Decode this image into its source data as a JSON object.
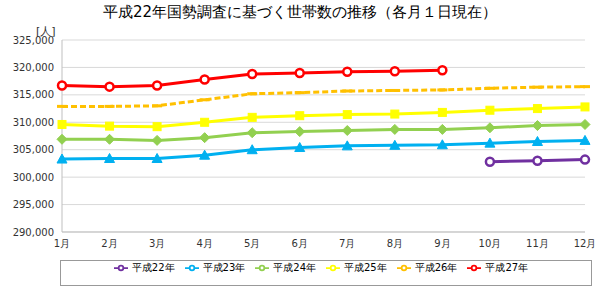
{
  "chart_data": {
    "type": "line",
    "title": "平成22年国勢調査に基づく世帯数の推移（各月１日現在）",
    "y_label": "[人]",
    "categories": [
      "1月",
      "2月",
      "3月",
      "4月",
      "5月",
      "6月",
      "7月",
      "8月",
      "9月",
      "10月",
      "11月",
      "12月"
    ],
    "series": [
      {
        "name": "平成22年",
        "color": "#7030a0",
        "marker": "circle",
        "line_style": "solid",
        "values": [
          null,
          null,
          null,
          null,
          null,
          null,
          null,
          null,
          null,
          302800,
          303000,
          303200
        ]
      },
      {
        "name": "平成23年",
        "color": "#00b0f0",
        "marker": "triangle",
        "line_style": "solid",
        "values": [
          303300,
          303400,
          303400,
          304000,
          305000,
          305400,
          305700,
          305800,
          305900,
          306200,
          306500,
          306700
        ]
      },
      {
        "name": "平成24年",
        "color": "#92d050",
        "marker": "diamond",
        "line_style": "solid",
        "values": [
          306900,
          306900,
          306700,
          307200,
          308100,
          308300,
          308500,
          308700,
          308700,
          309000,
          309400,
          309600
        ]
      },
      {
        "name": "平成25年",
        "color": "#ffff00",
        "marker": "square",
        "line_style": "solid",
        "values": [
          309600,
          309300,
          309200,
          310000,
          310900,
          311200,
          311400,
          311500,
          311800,
          312200,
          312500,
          312800
        ]
      },
      {
        "name": "平成26年",
        "color": "#ffc000",
        "marker": "dash",
        "line_style": "dashed",
        "values": [
          312900,
          312900,
          313000,
          314100,
          315200,
          315400,
          315700,
          315800,
          315900,
          316200,
          316400,
          316500
        ]
      },
      {
        "name": "平成27年",
        "color": "#ff0000",
        "marker": "circle",
        "line_style": "solid",
        "values": [
          316700,
          316500,
          316700,
          317800,
          318800,
          319000,
          319200,
          319300,
          319500,
          null,
          null,
          null
        ]
      }
    ],
    "ylim": [
      290000,
      325000
    ],
    "yticks": [
      {
        "value": 290000,
        "label": "290,000"
      },
      {
        "value": 295000,
        "label": "295,000"
      },
      {
        "value": 300000,
        "label": "300,000"
      },
      {
        "value": 305000,
        "label": "305,000"
      },
      {
        "value": 310000,
        "label": "310,000"
      },
      {
        "value": 315000,
        "label": "315,000"
      },
      {
        "value": 320000,
        "label": "320,000"
      },
      {
        "value": 325000,
        "label": "325,000"
      }
    ],
    "grid": true,
    "legend": "bottom"
  }
}
